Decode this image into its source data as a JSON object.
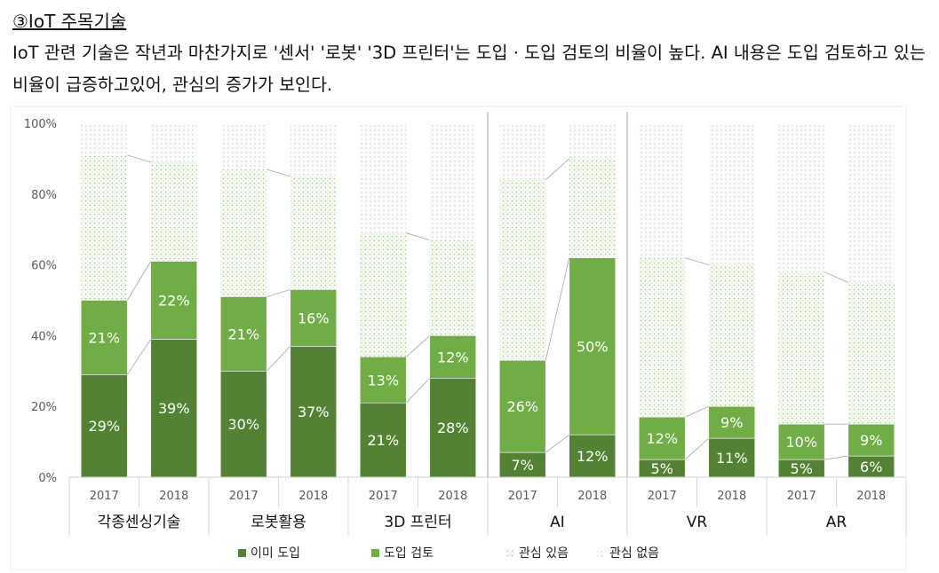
{
  "heading": "③IoT 주목기술",
  "description": "IoT 관련 기술은 작년과 마찬가지로 '센서' '로봇' '3D 프린터'는 도입 · 도입 검토의 비율이 높다. AI 내용은 도입 검토하고 있는 비율이 급증하고있어, 관심의 증가가 보인다.",
  "colors": {
    "already": "#548235",
    "considering": "#70ad47",
    "interest": "#cfe3c2",
    "no_interest": "#e3e3e3",
    "connector": "#a6a6a6",
    "divider": "#a6a6a6",
    "axis_text": "#595959"
  },
  "chart_data": {
    "type": "bar",
    "stacked": true,
    "y_ticks": [
      "0%",
      "20%",
      "40%",
      "60%",
      "80%",
      "100%"
    ],
    "ylim": [
      0,
      100
    ],
    "x": [
      "2017",
      "2018",
      "2017",
      "2018",
      "2017",
      "2018",
      "2017",
      "2018",
      "2017",
      "2018",
      "2017",
      "2018"
    ],
    "groups": [
      "각종센싱기술",
      "로봇활용",
      "3D 프린터",
      "AI",
      "VR",
      "AR"
    ],
    "series": [
      {
        "name": "이미 도입",
        "key": "already",
        "values": [
          29,
          39,
          30,
          37,
          21,
          28,
          7,
          12,
          5,
          11,
          5,
          6
        ]
      },
      {
        "name": "도입 검토",
        "key": "considering",
        "values": [
          21,
          22,
          21,
          16,
          13,
          12,
          26,
          50,
          12,
          9,
          10,
          9
        ]
      },
      {
        "name": "관심 있음",
        "key": "interest",
        "values": [
          41,
          28,
          36,
          32,
          35,
          27,
          51,
          28,
          45,
          40,
          43,
          40
        ]
      },
      {
        "name": "관심 없음",
        "key": "no_interest",
        "values": [
          9,
          11,
          13,
          15,
          31,
          33,
          16,
          10,
          38,
          40,
          42,
          45
        ]
      }
    ],
    "labels": {
      "already": [
        "29%",
        "39%",
        "30%",
        "37%",
        "21%",
        "28%",
        "7%",
        "12%",
        "5%",
        "11%",
        "5%",
        "6%"
      ],
      "considering": [
        "21%",
        "22%",
        "21%",
        "16%",
        "13%",
        "12%",
        "26%",
        "50%",
        "12%",
        "9%",
        "10%",
        "9%"
      ]
    },
    "legend_position": "bottom",
    "grid": false
  }
}
